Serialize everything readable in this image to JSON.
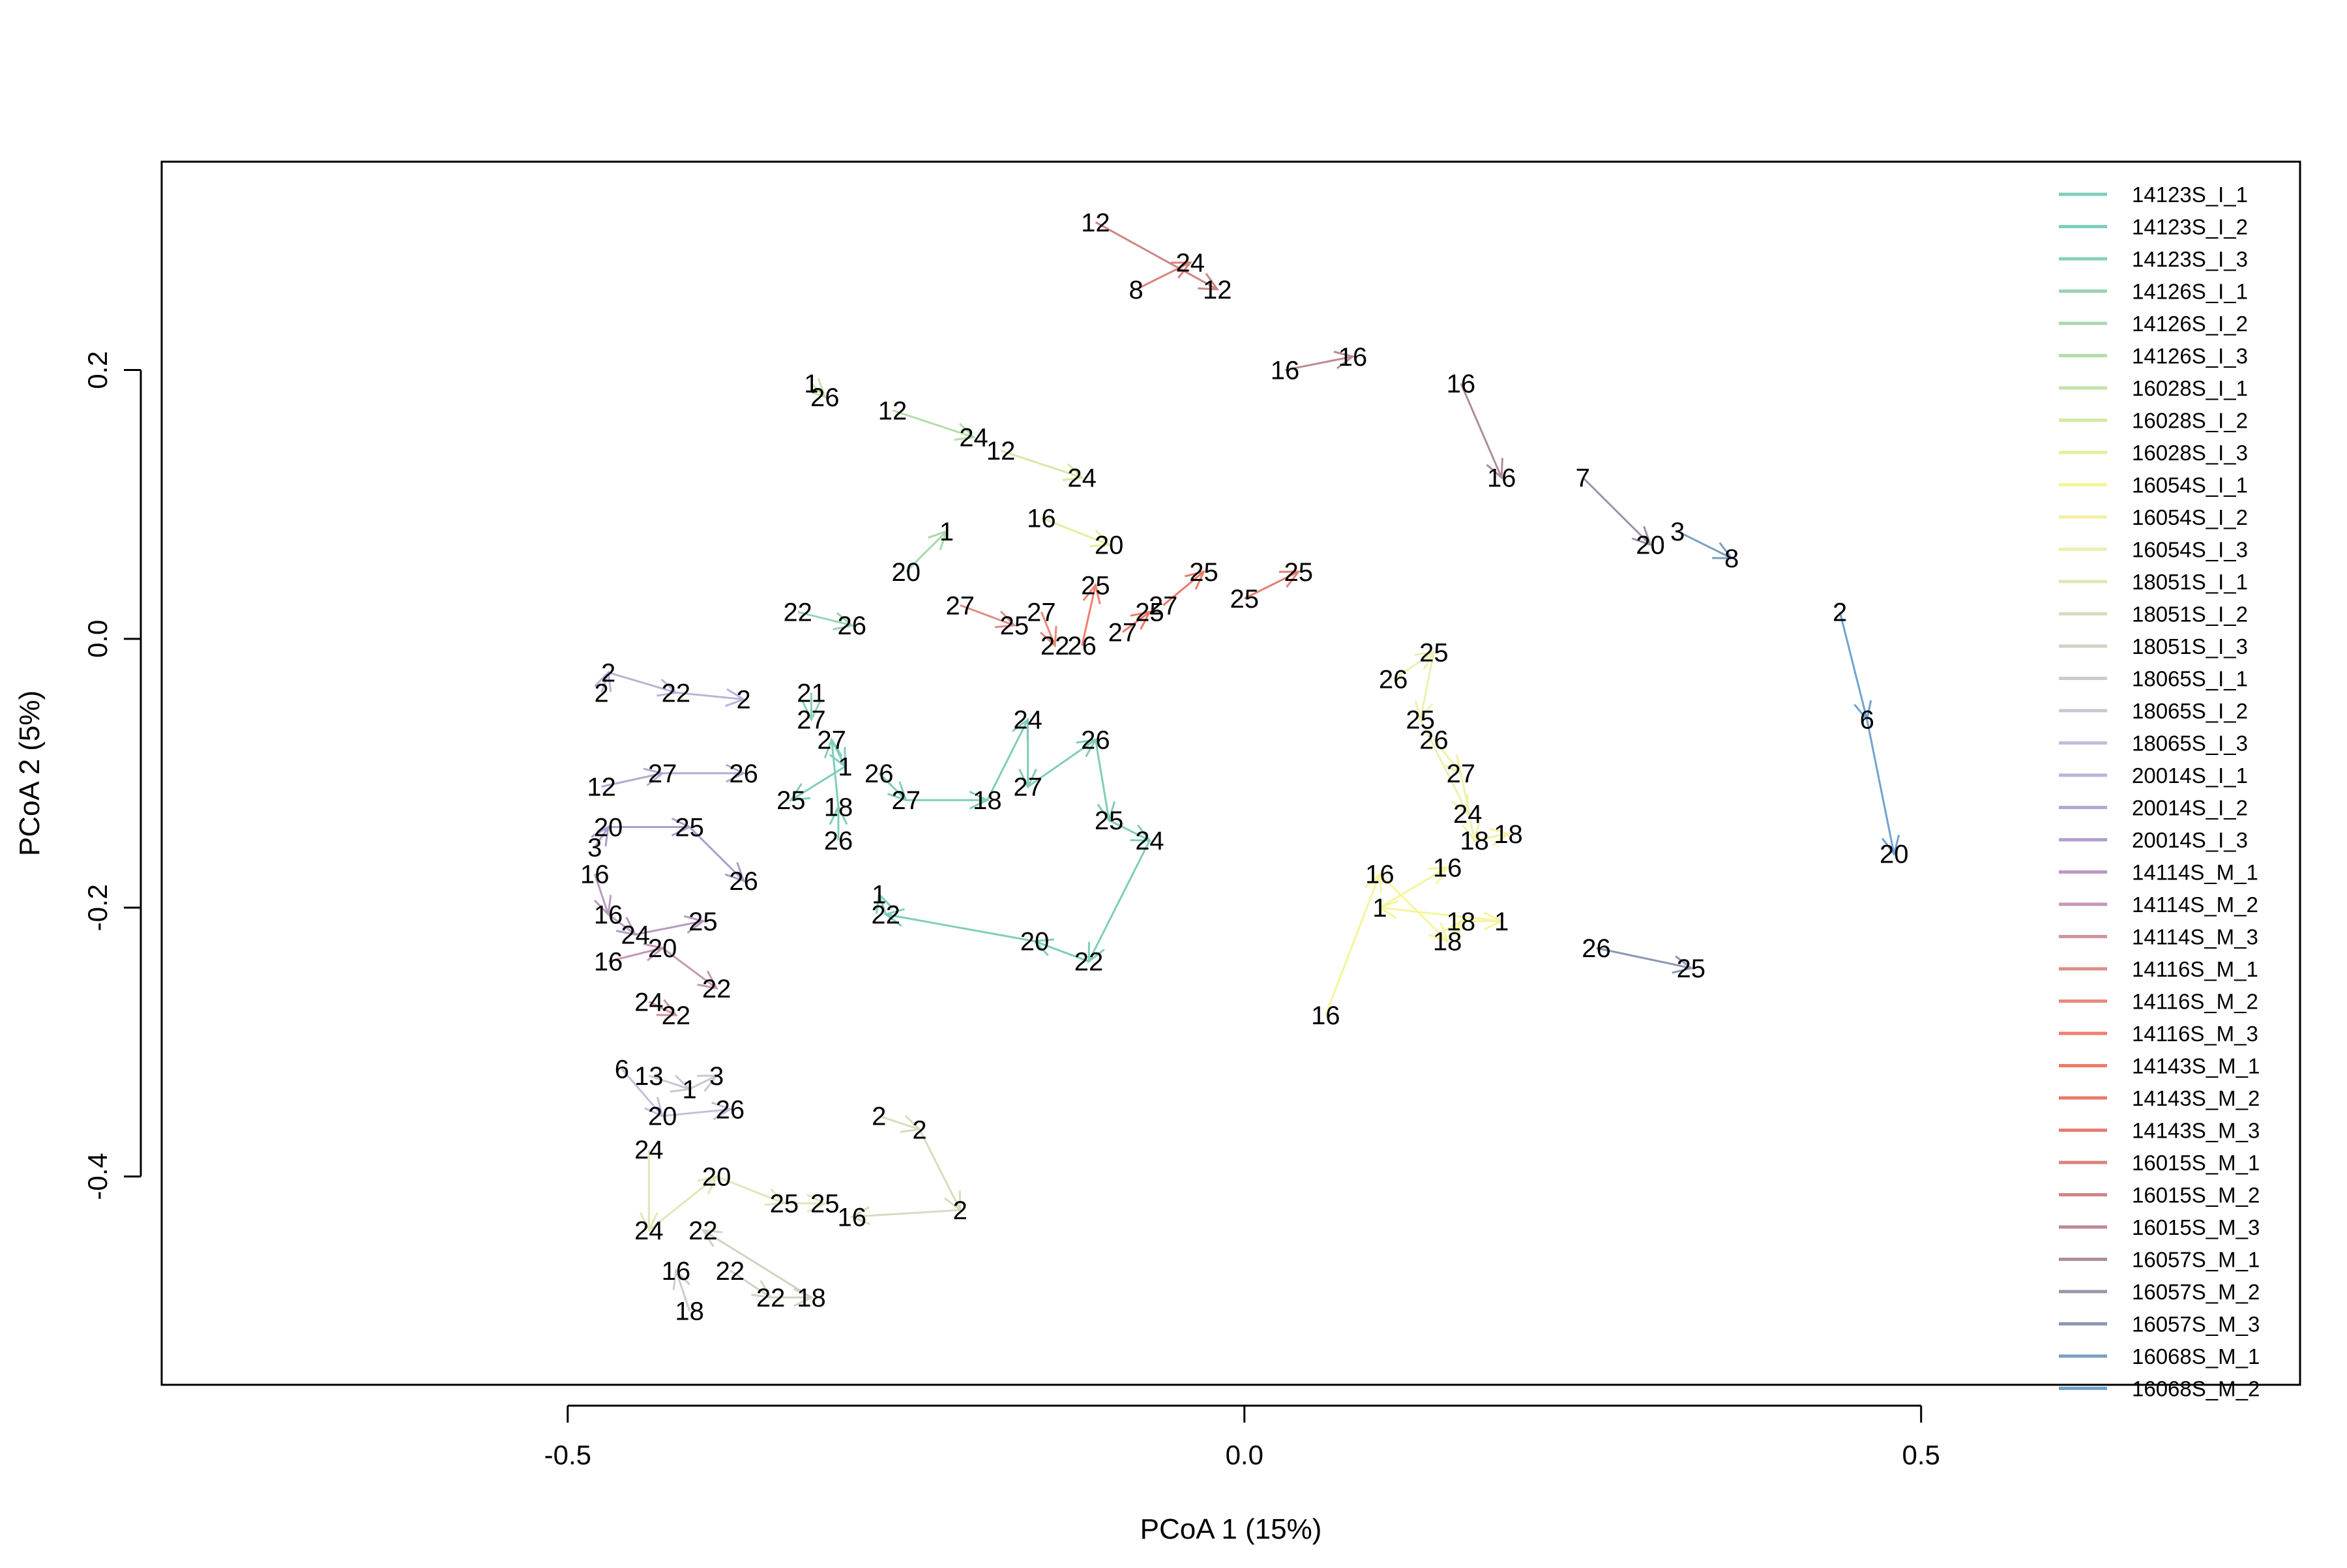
{
  "chart_data": {
    "type": "scatter",
    "title": "",
    "xlabel": "PCoA 1 (15%)",
    "ylabel": "PCoA 2 (5%)",
    "xlim": [
      -0.8,
      0.78
    ],
    "ylim": [
      -0.555,
      0.355
    ],
    "x_ticks": [
      {
        "v": -0.5,
        "label": "-0.5"
      },
      {
        "v": 0.0,
        "label": "0.0"
      },
      {
        "v": 0.5,
        "label": "0.5"
      }
    ],
    "y_ticks": [
      {
        "v": 0.2,
        "label": "0.2"
      },
      {
        "v": 0.0,
        "label": "0.0"
      },
      {
        "v": -0.2,
        "label": "-0.2"
      },
      {
        "v": -0.4,
        "label": "-0.4"
      }
    ],
    "grid": false,
    "legend_position": "top-right",
    "series": [
      {
        "name": "14123S_I_1",
        "color": "#7fcdbb",
        "points": [
          {
            "x": -0.27,
            "y": -0.1,
            "label": "26"
          },
          {
            "x": -0.25,
            "y": -0.12,
            "label": "27"
          },
          {
            "x": -0.19,
            "y": -0.12,
            "label": "18"
          },
          {
            "x": -0.16,
            "y": -0.06,
            "label": "24"
          },
          {
            "x": -0.16,
            "y": -0.11,
            "label": "27"
          },
          {
            "x": -0.11,
            "y": -0.075,
            "label": "26"
          },
          {
            "x": -0.1,
            "y": -0.135,
            "label": "25"
          },
          {
            "x": -0.07,
            "y": -0.15,
            "label": "24"
          },
          {
            "x": -0.115,
            "y": -0.24,
            "label": "22"
          },
          {
            "x": -0.155,
            "y": -0.225,
            "label": "20"
          },
          {
            "x": -0.265,
            "y": -0.205,
            "label": "22"
          },
          {
            "x": -0.27,
            "y": -0.19,
            "label": "1"
          }
        ]
      },
      {
        "name": "14123S_I_2",
        "color": "#80cdbc",
        "points": [
          {
            "x": -0.3,
            "y": -0.15,
            "label": "26"
          },
          {
            "x": -0.3,
            "y": -0.125,
            "label": "18"
          },
          {
            "x": -0.305,
            "y": -0.075,
            "label": "27"
          },
          {
            "x": -0.295,
            "y": -0.095,
            "label": "1"
          },
          {
            "x": -0.335,
            "y": -0.12,
            "label": "25"
          }
        ]
      },
      {
        "name": "14123S_I_3",
        "color": "#8ad0bc",
        "points": [
          {
            "x": -0.32,
            "y": -0.04,
            "label": "21"
          },
          {
            "x": -0.32,
            "y": -0.06,
            "label": "27"
          }
        ]
      },
      {
        "name": "14126S_I_1",
        "color": "#99d4b5",
        "points": [
          {
            "x": -0.33,
            "y": 0.02,
            "label": "22"
          },
          {
            "x": -0.29,
            "y": 0.01,
            "label": "26"
          }
        ]
      },
      {
        "name": "14126S_I_2",
        "color": "#a6d9ad",
        "points": [
          {
            "x": -0.25,
            "y": 0.05,
            "label": "20"
          },
          {
            "x": -0.22,
            "y": 0.08,
            "label": "1"
          }
        ]
      },
      {
        "name": "14126S_I_3",
        "color": "#b3dda6",
        "points": [
          {
            "x": -0.26,
            "y": 0.17,
            "label": "12"
          },
          {
            "x": -0.2,
            "y": 0.15,
            "label": "24"
          }
        ]
      },
      {
        "name": "16028S_I_1",
        "color": "#c3e3a5",
        "points": [
          {
            "x": -0.32,
            "y": 0.19,
            "label": "1"
          },
          {
            "x": -0.31,
            "y": 0.18,
            "label": "26"
          }
        ]
      },
      {
        "name": "16028S_I_2",
        "color": "#d4e9a3",
        "points": [
          {
            "x": -0.18,
            "y": 0.14,
            "label": "12"
          },
          {
            "x": -0.12,
            "y": 0.12,
            "label": "24"
          }
        ]
      },
      {
        "name": "16028S_I_3",
        "color": "#e4ef9f",
        "points": [
          {
            "x": -0.15,
            "y": 0.09,
            "label": "16"
          },
          {
            "x": -0.1,
            "y": 0.07,
            "label": "20"
          }
        ]
      },
      {
        "name": "16054S_I_1",
        "color": "#f5f59a",
        "points": [
          {
            "x": 0.06,
            "y": -0.28,
            "label": "16"
          },
          {
            "x": 0.1,
            "y": -0.175,
            "label": "16"
          },
          {
            "x": 0.15,
            "y": -0.225,
            "label": "18"
          },
          {
            "x": 0.16,
            "y": -0.21,
            "label": "18"
          },
          {
            "x": 0.19,
            "y": -0.21,
            "label": "1"
          },
          {
            "x": 0.1,
            "y": -0.2,
            "label": "1"
          },
          {
            "x": 0.15,
            "y": -0.17,
            "label": "16"
          }
        ]
      },
      {
        "name": "16054S_I_2",
        "color": "#f3f1a4",
        "points": [
          {
            "x": 0.14,
            "y": -0.075,
            "label": "26"
          },
          {
            "x": 0.16,
            "y": -0.1,
            "label": "27"
          },
          {
            "x": 0.17,
            "y": -0.15,
            "label": "18"
          },
          {
            "x": 0.195,
            "y": -0.145,
            "label": "18"
          }
        ]
      },
      {
        "name": "16054S_I_3",
        "color": "#efefb0",
        "points": [
          {
            "x": 0.11,
            "y": -0.03,
            "label": "26"
          },
          {
            "x": 0.14,
            "y": -0.01,
            "label": "25"
          },
          {
            "x": 0.13,
            "y": -0.06,
            "label": "25"
          },
          {
            "x": 0.165,
            "y": -0.13,
            "label": "24"
          }
        ]
      },
      {
        "name": "18051S_I_1",
        "color": "#e3e6b7",
        "points": [
          {
            "x": -0.44,
            "y": -0.38,
            "label": "24"
          },
          {
            "x": -0.44,
            "y": -0.44,
            "label": "24"
          },
          {
            "x": -0.39,
            "y": -0.4,
            "label": "20"
          },
          {
            "x": -0.34,
            "y": -0.42,
            "label": "25"
          },
          {
            "x": -0.31,
            "y": -0.42,
            "label": "25"
          }
        ]
      },
      {
        "name": "18051S_I_2",
        "color": "#d8dcbe",
        "points": [
          {
            "x": -0.27,
            "y": -0.355,
            "label": "2"
          },
          {
            "x": -0.24,
            "y": -0.365,
            "label": "2"
          },
          {
            "x": -0.21,
            "y": -0.425,
            "label": "2"
          },
          {
            "x": -0.29,
            "y": -0.43,
            "label": "16"
          }
        ]
      },
      {
        "name": "18051S_I_3",
        "color": "#d0d3c2",
        "points": [
          {
            "x": -0.38,
            "y": -0.47,
            "label": "22"
          },
          {
            "x": -0.35,
            "y": -0.49,
            "label": "22"
          },
          {
            "x": -0.32,
            "y": -0.49,
            "label": "18"
          },
          {
            "x": -0.4,
            "y": -0.44,
            "label": "22"
          }
        ]
      },
      {
        "name": "18065S_I_1",
        "color": "#cccccc",
        "points": [
          {
            "x": -0.41,
            "y": -0.5,
            "label": "18"
          },
          {
            "x": -0.42,
            "y": -0.47,
            "label": "16"
          }
        ]
      },
      {
        "name": "18065S_I_2",
        "color": "#c8c8d2",
        "points": [
          {
            "x": -0.44,
            "y": -0.325,
            "label": "13"
          },
          {
            "x": -0.41,
            "y": -0.335,
            "label": "1"
          },
          {
            "x": -0.39,
            "y": -0.325,
            "label": "3"
          }
        ]
      },
      {
        "name": "18065S_I_3",
        "color": "#c1bfdb",
        "points": [
          {
            "x": -0.46,
            "y": -0.32,
            "label": "6"
          },
          {
            "x": -0.43,
            "y": -0.355,
            "label": "20"
          },
          {
            "x": -0.38,
            "y": -0.35,
            "label": "26"
          }
        ]
      },
      {
        "name": "20014S_I_1",
        "color": "#b9b4d9",
        "points": [
          {
            "x": -0.475,
            "y": -0.04,
            "label": "2"
          },
          {
            "x": -0.47,
            "y": -0.025,
            "label": "2"
          },
          {
            "x": -0.42,
            "y": -0.04,
            "label": "22"
          },
          {
            "x": -0.37,
            "y": -0.045,
            "label": "2"
          }
        ]
      },
      {
        "name": "20014S_I_2",
        "color": "#b2a9d3",
        "points": [
          {
            "x": -0.475,
            "y": -0.11,
            "label": "12"
          },
          {
            "x": -0.43,
            "y": -0.1,
            "label": "27"
          },
          {
            "x": -0.37,
            "y": -0.1,
            "label": "26"
          }
        ]
      },
      {
        "name": "20014S_I_3",
        "color": "#ac9ecc",
        "points": [
          {
            "x": -0.48,
            "y": -0.155,
            "label": "3"
          },
          {
            "x": -0.47,
            "y": -0.14,
            "label": "20"
          },
          {
            "x": -0.41,
            "y": -0.14,
            "label": "25"
          },
          {
            "x": -0.37,
            "y": -0.18,
            "label": "26"
          }
        ]
      },
      {
        "name": "14114S_M_1",
        "color": "#b79ac2",
        "points": [
          {
            "x": -0.48,
            "y": -0.175,
            "label": "16"
          },
          {
            "x": -0.47,
            "y": -0.205,
            "label": "16"
          },
          {
            "x": -0.45,
            "y": -0.22,
            "label": "24"
          },
          {
            "x": -0.4,
            "y": -0.21,
            "label": "25"
          }
        ]
      },
      {
        "name": "14114S_M_2",
        "color": "#c597b6",
        "points": [
          {
            "x": -0.47,
            "y": -0.24,
            "label": "16"
          },
          {
            "x": -0.43,
            "y": -0.23,
            "label": "20"
          },
          {
            "x": -0.39,
            "y": -0.26,
            "label": "22"
          }
        ]
      },
      {
        "name": "14114S_M_3",
        "color": "#d1939f",
        "points": [
          {
            "x": -0.44,
            "y": -0.27,
            "label": "24"
          },
          {
            "x": -0.42,
            "y": -0.28,
            "label": "22"
          }
        ]
      },
      {
        "name": "14116S_M_1",
        "color": "#dc8f8a",
        "points": [
          {
            "x": -0.21,
            "y": 0.025,
            "label": "27"
          },
          {
            "x": -0.17,
            "y": 0.01,
            "label": "25"
          }
        ]
      },
      {
        "name": "14116S_M_2",
        "color": "#e88a7b",
        "points": [
          {
            "x": -0.15,
            "y": 0.02,
            "label": "27"
          },
          {
            "x": -0.14,
            "y": -0.005,
            "label": "22"
          }
        ]
      },
      {
        "name": "14116S_M_3",
        "color": "#f07f6f",
        "points": [
          {
            "x": -0.12,
            "y": -0.005,
            "label": "26"
          },
          {
            "x": -0.11,
            "y": 0.04,
            "label": "25"
          }
        ]
      },
      {
        "name": "14143S_M_1",
        "color": "#f17966",
        "points": [
          {
            "x": -0.09,
            "y": 0.005,
            "label": "27"
          },
          {
            "x": -0.07,
            "y": 0.02,
            "label": "25"
          }
        ]
      },
      {
        "name": "14143S_M_2",
        "color": "#ec7a6a",
        "points": [
          {
            "x": -0.06,
            "y": 0.025,
            "label": "27"
          },
          {
            "x": -0.03,
            "y": 0.05,
            "label": "25"
          }
        ]
      },
      {
        "name": "14143S_M_3",
        "color": "#e57e72",
        "points": [
          {
            "x": 0.0,
            "y": 0.03,
            "label": "25"
          },
          {
            "x": 0.04,
            "y": 0.05,
            "label": "25"
          }
        ]
      },
      {
        "name": "16015S_M_1",
        "color": "#db827c",
        "points": [
          {
            "x": -0.08,
            "y": 0.26,
            "label": "8"
          },
          {
            "x": -0.04,
            "y": 0.28,
            "label": "24"
          }
        ]
      },
      {
        "name": "16015S_M_2",
        "color": "#cd8686",
        "points": [
          {
            "x": -0.11,
            "y": 0.31,
            "label": "12"
          },
          {
            "x": -0.02,
            "y": 0.26,
            "label": "12"
          }
        ]
      },
      {
        "name": "16015S_M_3",
        "color": "#bd8990",
        "points": [
          {
            "x": 0.03,
            "y": 0.2,
            "label": "16"
          },
          {
            "x": 0.08,
            "y": 0.21,
            "label": "16"
          }
        ]
      },
      {
        "name": "16057S_M_1",
        "color": "#ad8e9c",
        "points": [
          {
            "x": 0.16,
            "y": 0.19,
            "label": "16"
          },
          {
            "x": 0.19,
            "y": 0.12,
            "label": "16"
          }
        ]
      },
      {
        "name": "16057S_M_2",
        "color": "#9c93a8",
        "points": [
          {
            "x": 0.25,
            "y": 0.12,
            "label": "7"
          },
          {
            "x": 0.3,
            "y": 0.07,
            "label": "20"
          }
        ]
      },
      {
        "name": "16057S_M_3",
        "color": "#8a98b4",
        "points": [
          {
            "x": 0.26,
            "y": -0.23,
            "label": "26"
          },
          {
            "x": 0.33,
            "y": -0.245,
            "label": "25"
          }
        ]
      },
      {
        "name": "16068S_M_1",
        "color": "#7a9fc1",
        "points": [
          {
            "x": 0.32,
            "y": 0.08,
            "label": "3"
          },
          {
            "x": 0.36,
            "y": 0.06,
            "label": "8"
          }
        ]
      },
      {
        "name": "16068S_M_2",
        "color": "#6fa3cf",
        "points": [
          {
            "x": 0.44,
            "y": 0.02,
            "label": "2"
          },
          {
            "x": 0.46,
            "y": -0.06,
            "label": "6"
          },
          {
            "x": 0.48,
            "y": -0.16,
            "label": "20"
          }
        ]
      }
    ]
  }
}
